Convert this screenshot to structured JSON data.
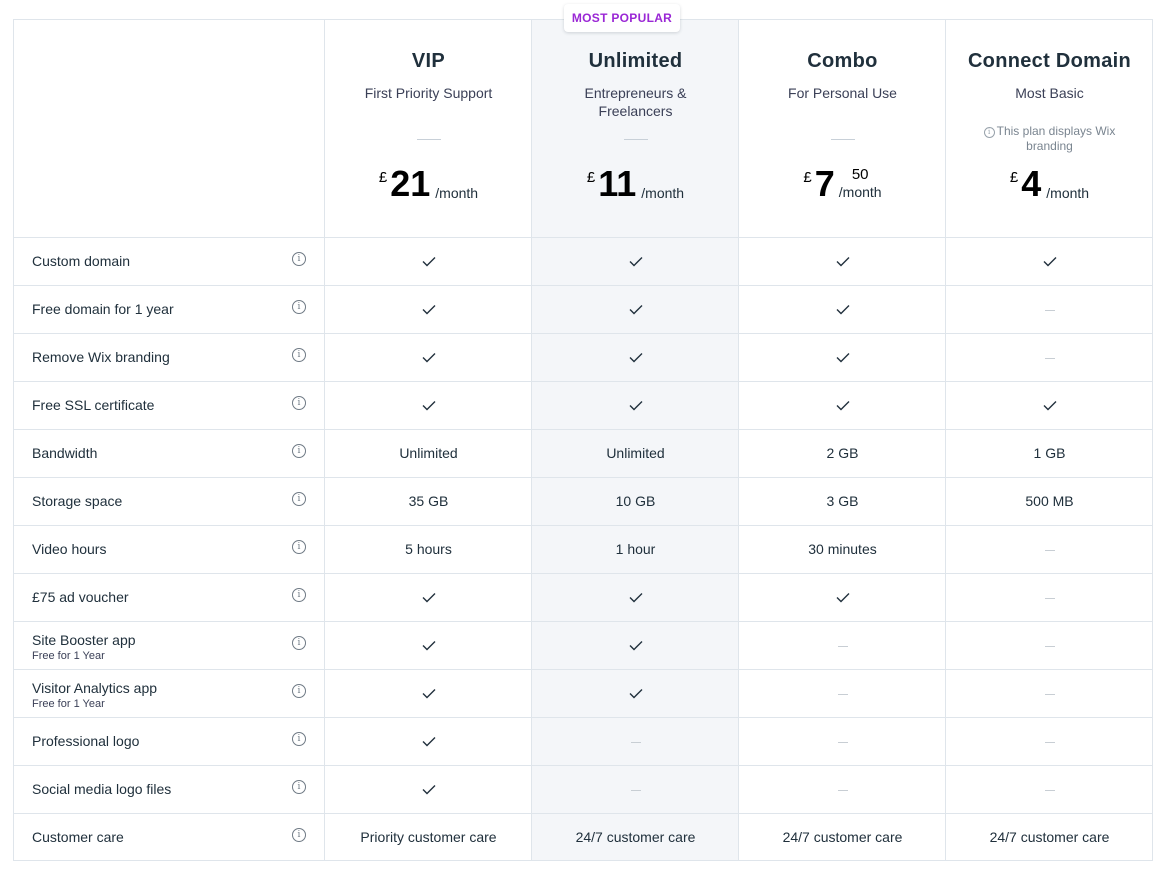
{
  "badge": "MOST POPULAR",
  "plans": [
    {
      "name": "VIP",
      "subtitle": "First Priority Support",
      "currency": "£",
      "price": "21",
      "price_decimal": "",
      "period": "/month",
      "note": ""
    },
    {
      "name": "Unlimited",
      "subtitle": "Entrepreneurs & Freelancers",
      "currency": "£",
      "price": "11",
      "price_decimal": "",
      "period": "/month",
      "note": "",
      "highlighted": true
    },
    {
      "name": "Combo",
      "subtitle": "For Personal Use",
      "currency": "£",
      "price": "7",
      "price_decimal": "50",
      "period": "/month",
      "note": ""
    },
    {
      "name": "Connect Domain",
      "subtitle": "Most Basic",
      "currency": "£",
      "price": "4",
      "price_decimal": "",
      "period": "/month",
      "note": "This plan displays Wix branding"
    }
  ],
  "features": [
    {
      "label": "Custom domain",
      "sublabel": "",
      "values": [
        "check",
        "check",
        "check",
        "check"
      ]
    },
    {
      "label": "Free domain for 1 year",
      "sublabel": "",
      "values": [
        "check",
        "check",
        "check",
        "none"
      ]
    },
    {
      "label": "Remove Wix branding",
      "sublabel": "",
      "values": [
        "check",
        "check",
        "check",
        "none"
      ]
    },
    {
      "label": "Free SSL certificate",
      "sublabel": "",
      "values": [
        "check",
        "check",
        "check",
        "check"
      ]
    },
    {
      "label": "Bandwidth",
      "sublabel": "",
      "values": [
        "Unlimited",
        "Unlimited",
        "2 GB",
        "1 GB"
      ]
    },
    {
      "label": "Storage space",
      "sublabel": "",
      "values": [
        "35 GB",
        "10 GB",
        "3 GB",
        "500 MB"
      ]
    },
    {
      "label": "Video hours",
      "sublabel": "",
      "values": [
        "5 hours",
        "1 hour",
        "30 minutes",
        "none"
      ]
    },
    {
      "label": "£75 ad voucher",
      "sublabel": "",
      "values": [
        "check",
        "check",
        "check",
        "none"
      ]
    },
    {
      "label": "Site Booster app",
      "sublabel": "Free for 1 Year",
      "values": [
        "check",
        "check",
        "none",
        "none"
      ]
    },
    {
      "label": "Visitor Analytics app",
      "sublabel": "Free for 1 Year",
      "values": [
        "check",
        "check",
        "none",
        "none"
      ]
    },
    {
      "label": "Professional logo",
      "sublabel": "",
      "values": [
        "check",
        "none",
        "none",
        "none"
      ]
    },
    {
      "label": "Social media logo files",
      "sublabel": "",
      "values": [
        "check",
        "none",
        "none",
        "none"
      ]
    },
    {
      "label": "Customer care",
      "sublabel": "",
      "values": [
        "Priority customer care",
        "24/7 customer care",
        "24/7 customer care",
        "24/7 customer care"
      ]
    }
  ],
  "icons": {
    "info": "info-icon",
    "check": "check-icon",
    "none": "dash-icon"
  },
  "colors": {
    "accent": "#9a27d5",
    "border": "#dfe5eb",
    "highlight": "#f4f6f9",
    "text": "#20303c"
  }
}
